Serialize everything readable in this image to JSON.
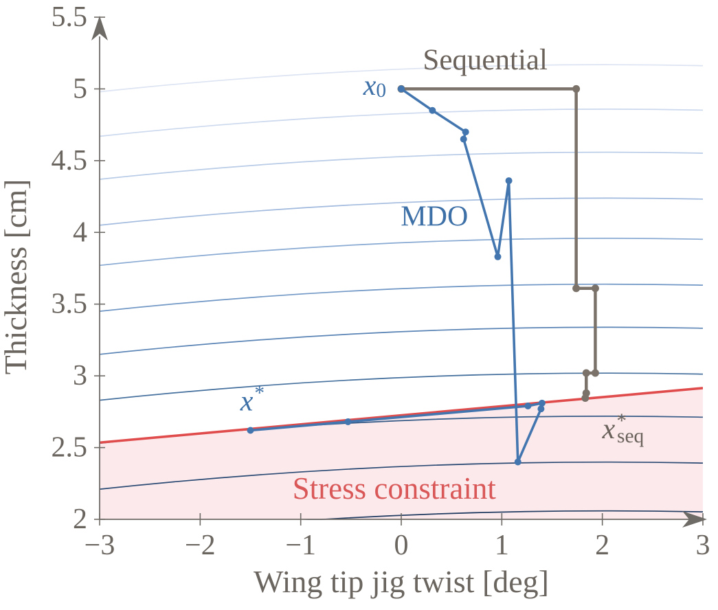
{
  "chart_data": {
    "type": "line",
    "title": "",
    "xlabel": "Wing tip jig twist [deg]",
    "ylabel": "Thickness [cm]",
    "xlim": [
      -3,
      3
    ],
    "ylim": [
      2,
      5.5
    ],
    "grid": false,
    "legend": "none (inline labels)",
    "x_ticks": [
      {
        "value": -3,
        "label": "−3"
      },
      {
        "value": -2,
        "label": "−2"
      },
      {
        "value": -1,
        "label": "−1"
      },
      {
        "value": 0,
        "label": "0"
      },
      {
        "value": 1,
        "label": "1"
      },
      {
        "value": 2,
        "label": "2"
      },
      {
        "value": 3,
        "label": "3"
      }
    ],
    "y_ticks": [
      {
        "value": 2,
        "label": "2"
      },
      {
        "value": 2.5,
        "label": "2.5"
      },
      {
        "value": 3,
        "label": "3"
      },
      {
        "value": 3.5,
        "label": "3.5"
      },
      {
        "value": 4,
        "label": "4"
      },
      {
        "value": 4.5,
        "label": "4.5"
      },
      {
        "value": 5,
        "label": "5"
      },
      {
        "value": 5.5,
        "label": "5.5"
      }
    ],
    "series": [
      {
        "name": "Sequential",
        "color_key": "seq",
        "points": [
          [
            0,
            5
          ],
          [
            1.74,
            5
          ],
          [
            1.74,
            3.61
          ],
          [
            1.93,
            3.61
          ],
          [
            1.93,
            3.02
          ],
          [
            1.84,
            3.02
          ],
          [
            1.84,
            2.88
          ],
          [
            1.83,
            2.845
          ]
        ]
      },
      {
        "name": "MDO",
        "color_key": "mdo",
        "points": [
          [
            0,
            5
          ],
          [
            0.31,
            4.85
          ],
          [
            0.64,
            4.7
          ],
          [
            0.62,
            4.65
          ],
          [
            0.96,
            3.83
          ],
          [
            1.07,
            4.36
          ],
          [
            1.16,
            2.4
          ],
          [
            1.39,
            2.77
          ],
          [
            1.4,
            2.81
          ],
          [
            1.26,
            2.79
          ],
          [
            -0.53,
            2.68
          ],
          [
            -1.5,
            2.62
          ]
        ]
      }
    ],
    "constraint_line": {
      "label": "Stress constraint",
      "x1": -3,
      "y1": 2.535,
      "x2": 3,
      "y2": 2.915
    },
    "contours": {
      "description": "objective contour levels read at x = -3 (curves arch upward toward the right)",
      "levels_at_xmin": [
        4.98,
        4.67,
        4.37,
        4.05,
        3.77,
        3.45,
        3.15,
        2.83,
        2.53,
        2.21,
        1.87
      ],
      "colors": [
        "#dce3f2",
        "#cbd8ee",
        "#b8cbe7",
        "#a1bade",
        "#89aad3",
        "#7097c5",
        "#5a84b5",
        "#45709e",
        "#355a86",
        "#2b4a73",
        "#223c61"
      ]
    },
    "annotations": [
      {
        "id": "sequential-label",
        "text": "Sequential",
        "x": 0.835,
        "y": 5.2,
        "color": "seq_label",
        "size": 43,
        "anchor": "middle",
        "italic": false
      },
      {
        "id": "mdo-label",
        "text": "MDO",
        "x": 0.33,
        "y": 4.11,
        "color": "mdo_label",
        "size": 42,
        "anchor": "middle",
        "italic": false
      },
      {
        "id": "x0-label",
        "base": "x",
        "sub": "0",
        "x": -0.15,
        "y": 4.96,
        "color": "mdo_label",
        "size": 42,
        "anchor": "end",
        "italic": true
      },
      {
        "id": "xstar-label",
        "base": "x",
        "sup": "*",
        "x": -1.48,
        "y": 2.76,
        "color": "mdo_label",
        "size": 42,
        "anchor": "middle",
        "italic": true
      },
      {
        "id": "xseq-label",
        "base": "x",
        "sup": "*",
        "sub": "seq",
        "x": 2.0,
        "y": 2.565,
        "color": "seq_label",
        "size": 42,
        "anchor": "start",
        "italic": true
      },
      {
        "id": "stress-label",
        "text": "Stress constraint",
        "x": -0.07,
        "y": 2.215,
        "color": "constraint_text",
        "size": 45,
        "anchor": "middle",
        "italic": false
      }
    ],
    "colors": {
      "mdo": "#4376af",
      "mdo_label": "#3e70a8",
      "seq": "#7b726a",
      "seq_label": "#6b635b",
      "constraint": "#e04c4c",
      "constraint_text": "#d95757",
      "infeasible_fill": "#fbe9ec",
      "axis": "#6e6a66",
      "tick_text": "#6b655f",
      "background": "#ffffff"
    }
  }
}
